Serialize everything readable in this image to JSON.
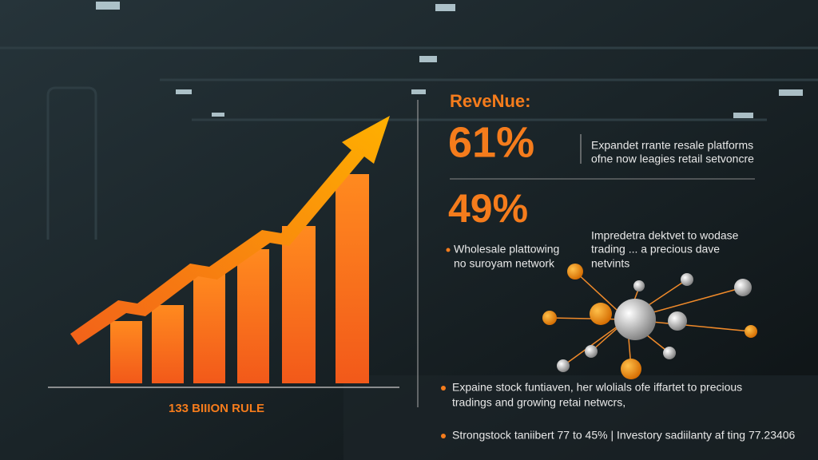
{
  "header": {
    "label": "ReveNue:"
  },
  "chart_caption": "133 BIIION RULE",
  "stats": [
    {
      "value": "61%",
      "text": [
        "Expandet rrante resale platforms",
        "ofne now leagies retail setvoncre"
      ]
    },
    {
      "value": "49%",
      "text": [
        "Wholesale plattowing",
        "no suroyam network"
      ]
    }
  ],
  "side_note": [
    "Impredetra dektvet to wodase",
    "trading ... a precious dave",
    "netvints"
  ],
  "bullets": [
    [
      "Expaine stock funtiaven, her wlolials ofe iffartet to precious",
      "tradings and growing retai netwcrs,"
    ],
    [
      "Strongstock taniibert 77 to 45% | Investory sadiilanty af ting 77.23406"
    ]
  ]
}
